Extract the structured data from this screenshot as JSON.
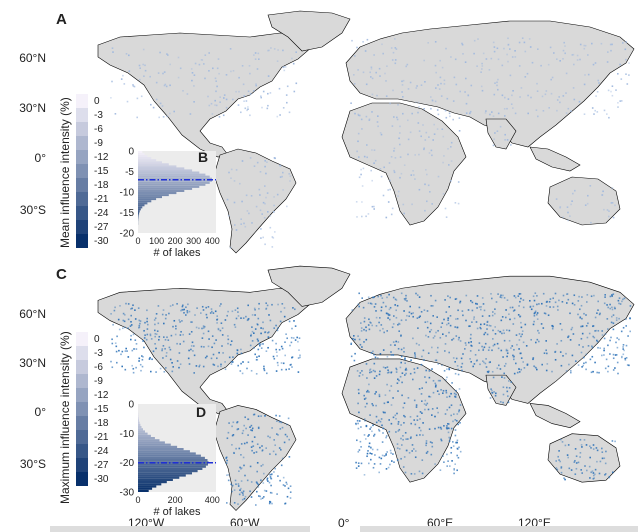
{
  "panels": [
    {
      "letter": "A",
      "lat_ticks": [
        "60°N",
        "30°N",
        "0°",
        "30°S"
      ],
      "legend_title": "Mean influence intensity (%)",
      "legend_labels": [
        "0",
        "-3",
        "-6",
        "-9",
        "-12",
        "-15",
        "-18",
        "-21",
        "-24",
        "-27",
        "-30"
      ],
      "inset": {
        "letter": "B",
        "y_ticks": [
          "0",
          "-5",
          "-10",
          "-15",
          "-20"
        ],
        "x_ticks": [
          "0",
          "100",
          "200",
          "300",
          "400"
        ],
        "xlabel": "# of lakes",
        "mean_line_value": -7
      },
      "lake_color": "#9fb8de"
    },
    {
      "letter": "C",
      "lat_ticks": [
        "60°N",
        "30°N",
        "0°",
        "30°S"
      ],
      "legend_title": "Maximum influence intensity (%)",
      "legend_labels": [
        "0",
        "-3",
        "-6",
        "-9",
        "-12",
        "-15",
        "-18",
        "-21",
        "-24",
        "-27",
        "-30"
      ],
      "inset": {
        "letter": "D",
        "y_ticks": [
          "0",
          "-10",
          "-20",
          "-30"
        ],
        "x_ticks": [
          "0",
          "200",
          "400"
        ],
        "xlabel": "# of lakes",
        "mean_line_value": -20
      },
      "lake_color": "#2f73b8"
    }
  ],
  "lon_ticks": [
    "120°W",
    "60°W",
    "0°",
    "60°E",
    "120°E"
  ],
  "colors": {
    "land": "#d9d9d9",
    "coast": "#000000",
    "ramp_light": "#f5f1fa",
    "ramp_dark": "#08306b",
    "mean_line": "#1f2fd6"
  }
}
